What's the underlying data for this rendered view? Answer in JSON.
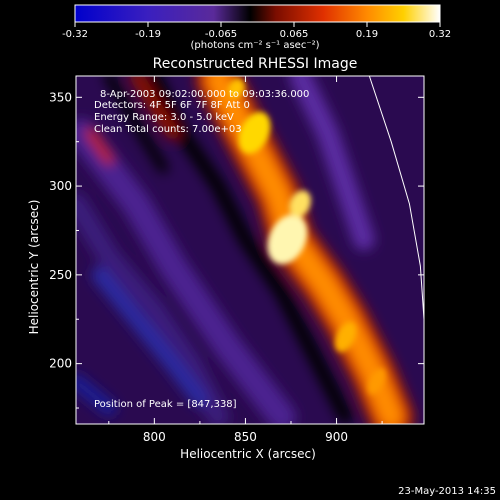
{
  "chart_data": {
    "type": "heatmap",
    "title": "Reconstructed RHESSI Image",
    "xlabel": "Heliocentric X (arcsec)",
    "ylabel": "Heliocentric Y (arcsec)",
    "x_ticks": [
      800,
      850,
      900
    ],
    "y_ticks": [
      200,
      250,
      300,
      350
    ],
    "xlim": [
      757,
      948
    ],
    "ylim": [
      166,
      362
    ],
    "colorbar": {
      "ticks": [
        "-0.32",
        "-0.19",
        "-0.065",
        "0.065",
        "0.19",
        "0.32"
      ],
      "range": [
        -0.32,
        0.32
      ],
      "unit_label": "(photons cm⁻² s⁻¹ asec⁻²)"
    },
    "info_lines": [
      "8-Apr-2003 09:02:00.000 to 09:03:36.000",
      "Detectors: 4F 5F 6F 7F 8F  Att 0",
      "Energy Range: 3.0 - 5.0 keV",
      "Clean     Total counts: 7.00e+03"
    ],
    "peak_label": "Position of Peak = [847,338]",
    "peak": [
      847,
      338
    ],
    "ridge": [
      [
        835,
        360
      ],
      [
        850,
        330
      ],
      [
        868,
        295
      ],
      [
        875,
        270
      ],
      [
        893,
        245
      ],
      [
        905,
        225
      ],
      [
        920,
        195
      ],
      [
        930,
        170
      ]
    ],
    "limb": [
      [
        918,
        362
      ],
      [
        930,
        325
      ],
      [
        940,
        290
      ],
      [
        946,
        255
      ],
      [
        949,
        210
      ],
      [
        950,
        166
      ]
    ]
  },
  "footer": {
    "date": "23-May-2013 14:35"
  }
}
